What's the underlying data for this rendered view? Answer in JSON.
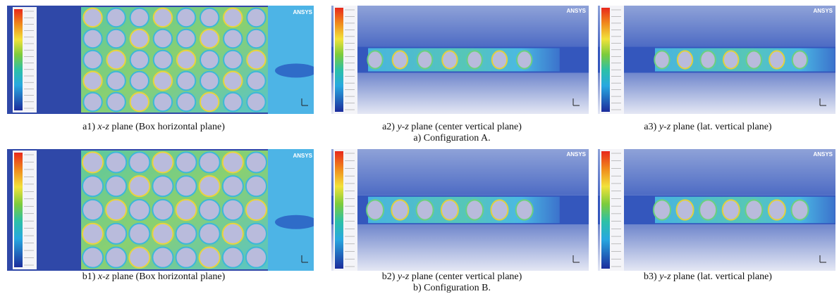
{
  "figure": {
    "rows": [
      {
        "panels": [
          {
            "label": "a1)",
            "plane": "x-z",
            "description": "plane (Box horizontal plane)",
            "logo": "ANSYS"
          },
          {
            "label": "a2)",
            "plane": "y-z",
            "description": "plane (center vertical plane)",
            "logo": "ANSYS"
          },
          {
            "label": "a3)",
            "plane": "y-z",
            "description": "plane (lat. vertical plane)",
            "logo": "ANSYS"
          }
        ],
        "caption": "a) Configuration A."
      },
      {
        "panels": [
          {
            "label": "b1)",
            "plane": "x-z",
            "description": "plane (Box horizontal plane)",
            "logo": "ANSYS"
          },
          {
            "label": "b2)",
            "plane": "y-z",
            "description": "plane (center vertical plane)",
            "logo": "ANSYS"
          },
          {
            "label": "b3)",
            "plane": "y-z",
            "description": "plane (lat. vertical plane)",
            "logo": "ANSYS"
          }
        ],
        "caption": "b) Configuration B."
      }
    ]
  }
}
